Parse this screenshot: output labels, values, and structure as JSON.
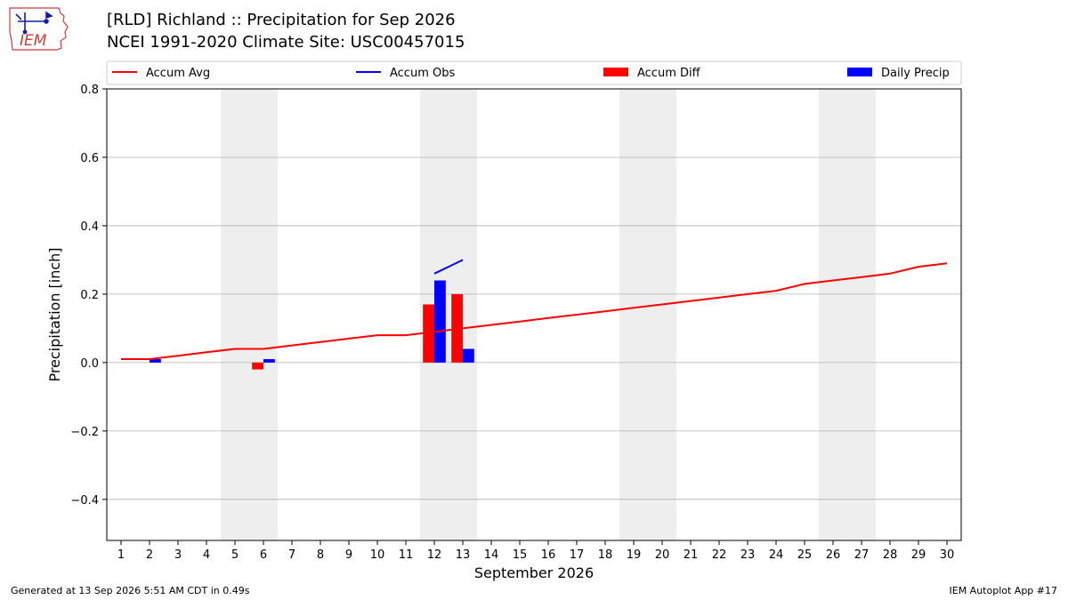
{
  "header": {
    "title_line1": "[RLD] Richland :: Precipitation for Sep 2026",
    "title_line2": "NCEI 1991-2020 Climate Site: USC00457015",
    "logo_text": "IEM"
  },
  "footer": {
    "generated": "Generated at 13 Sep 2026 5:51 AM CDT in 0.49s",
    "app": "IEM Autoplot App #17"
  },
  "chart_data": {
    "type": "bar",
    "xlabel": "September 2026",
    "ylabel": "Precipitation [inch]",
    "xlim": [
      0.5,
      30.5
    ],
    "ylim": [
      -0.52,
      0.8
    ],
    "yticks": [
      -0.4,
      -0.2,
      0.0,
      0.2,
      0.4,
      0.6,
      0.8
    ],
    "ytick_labels": [
      "−0.4",
      "−0.2",
      "0.0",
      "0.2",
      "0.4",
      "0.6",
      "0.8"
    ],
    "days": [
      1,
      2,
      3,
      4,
      5,
      6,
      7,
      8,
      9,
      10,
      11,
      12,
      13,
      14,
      15,
      16,
      17,
      18,
      19,
      20,
      21,
      22,
      23,
      24,
      25,
      26,
      27,
      28,
      29,
      30
    ],
    "weekend_spans": [
      [
        4.5,
        6.5
      ],
      [
        11.5,
        13.5
      ],
      [
        18.5,
        20.5
      ],
      [
        25.5,
        27.5
      ]
    ],
    "grid": "horizontal",
    "legend_placement": "top",
    "series": [
      {
        "name": "Accum Avg",
        "kind": "line",
        "color": "#ff0000",
        "x": [
          1,
          2,
          3,
          4,
          5,
          6,
          7,
          8,
          9,
          10,
          11,
          12,
          13,
          14,
          15,
          16,
          17,
          18,
          19,
          20,
          21,
          22,
          23,
          24,
          25,
          26,
          27,
          28,
          29,
          30
        ],
        "values": [
          0.01,
          0.01,
          0.02,
          0.03,
          0.04,
          0.04,
          0.05,
          0.06,
          0.07,
          0.08,
          0.08,
          0.09,
          0.1,
          0.11,
          0.12,
          0.13,
          0.14,
          0.15,
          0.16,
          0.17,
          0.18,
          0.19,
          0.2,
          0.21,
          0.23,
          0.24,
          0.25,
          0.26,
          0.28,
          0.29
        ]
      },
      {
        "name": "Accum Obs",
        "kind": "line",
        "color": "#0000ff",
        "x": [
          12,
          13
        ],
        "values": [
          0.26,
          0.3
        ]
      },
      {
        "name": "Accum Diff",
        "kind": "bar",
        "color": "#ff0000",
        "x": [
          6,
          12,
          13
        ],
        "values": [
          -0.02,
          0.17,
          0.2
        ]
      },
      {
        "name": "Daily Precip",
        "kind": "bar",
        "color": "#0000ff",
        "x": [
          2,
          6,
          12,
          13
        ],
        "values": [
          0.01,
          0.01,
          0.24,
          0.04
        ]
      }
    ]
  }
}
